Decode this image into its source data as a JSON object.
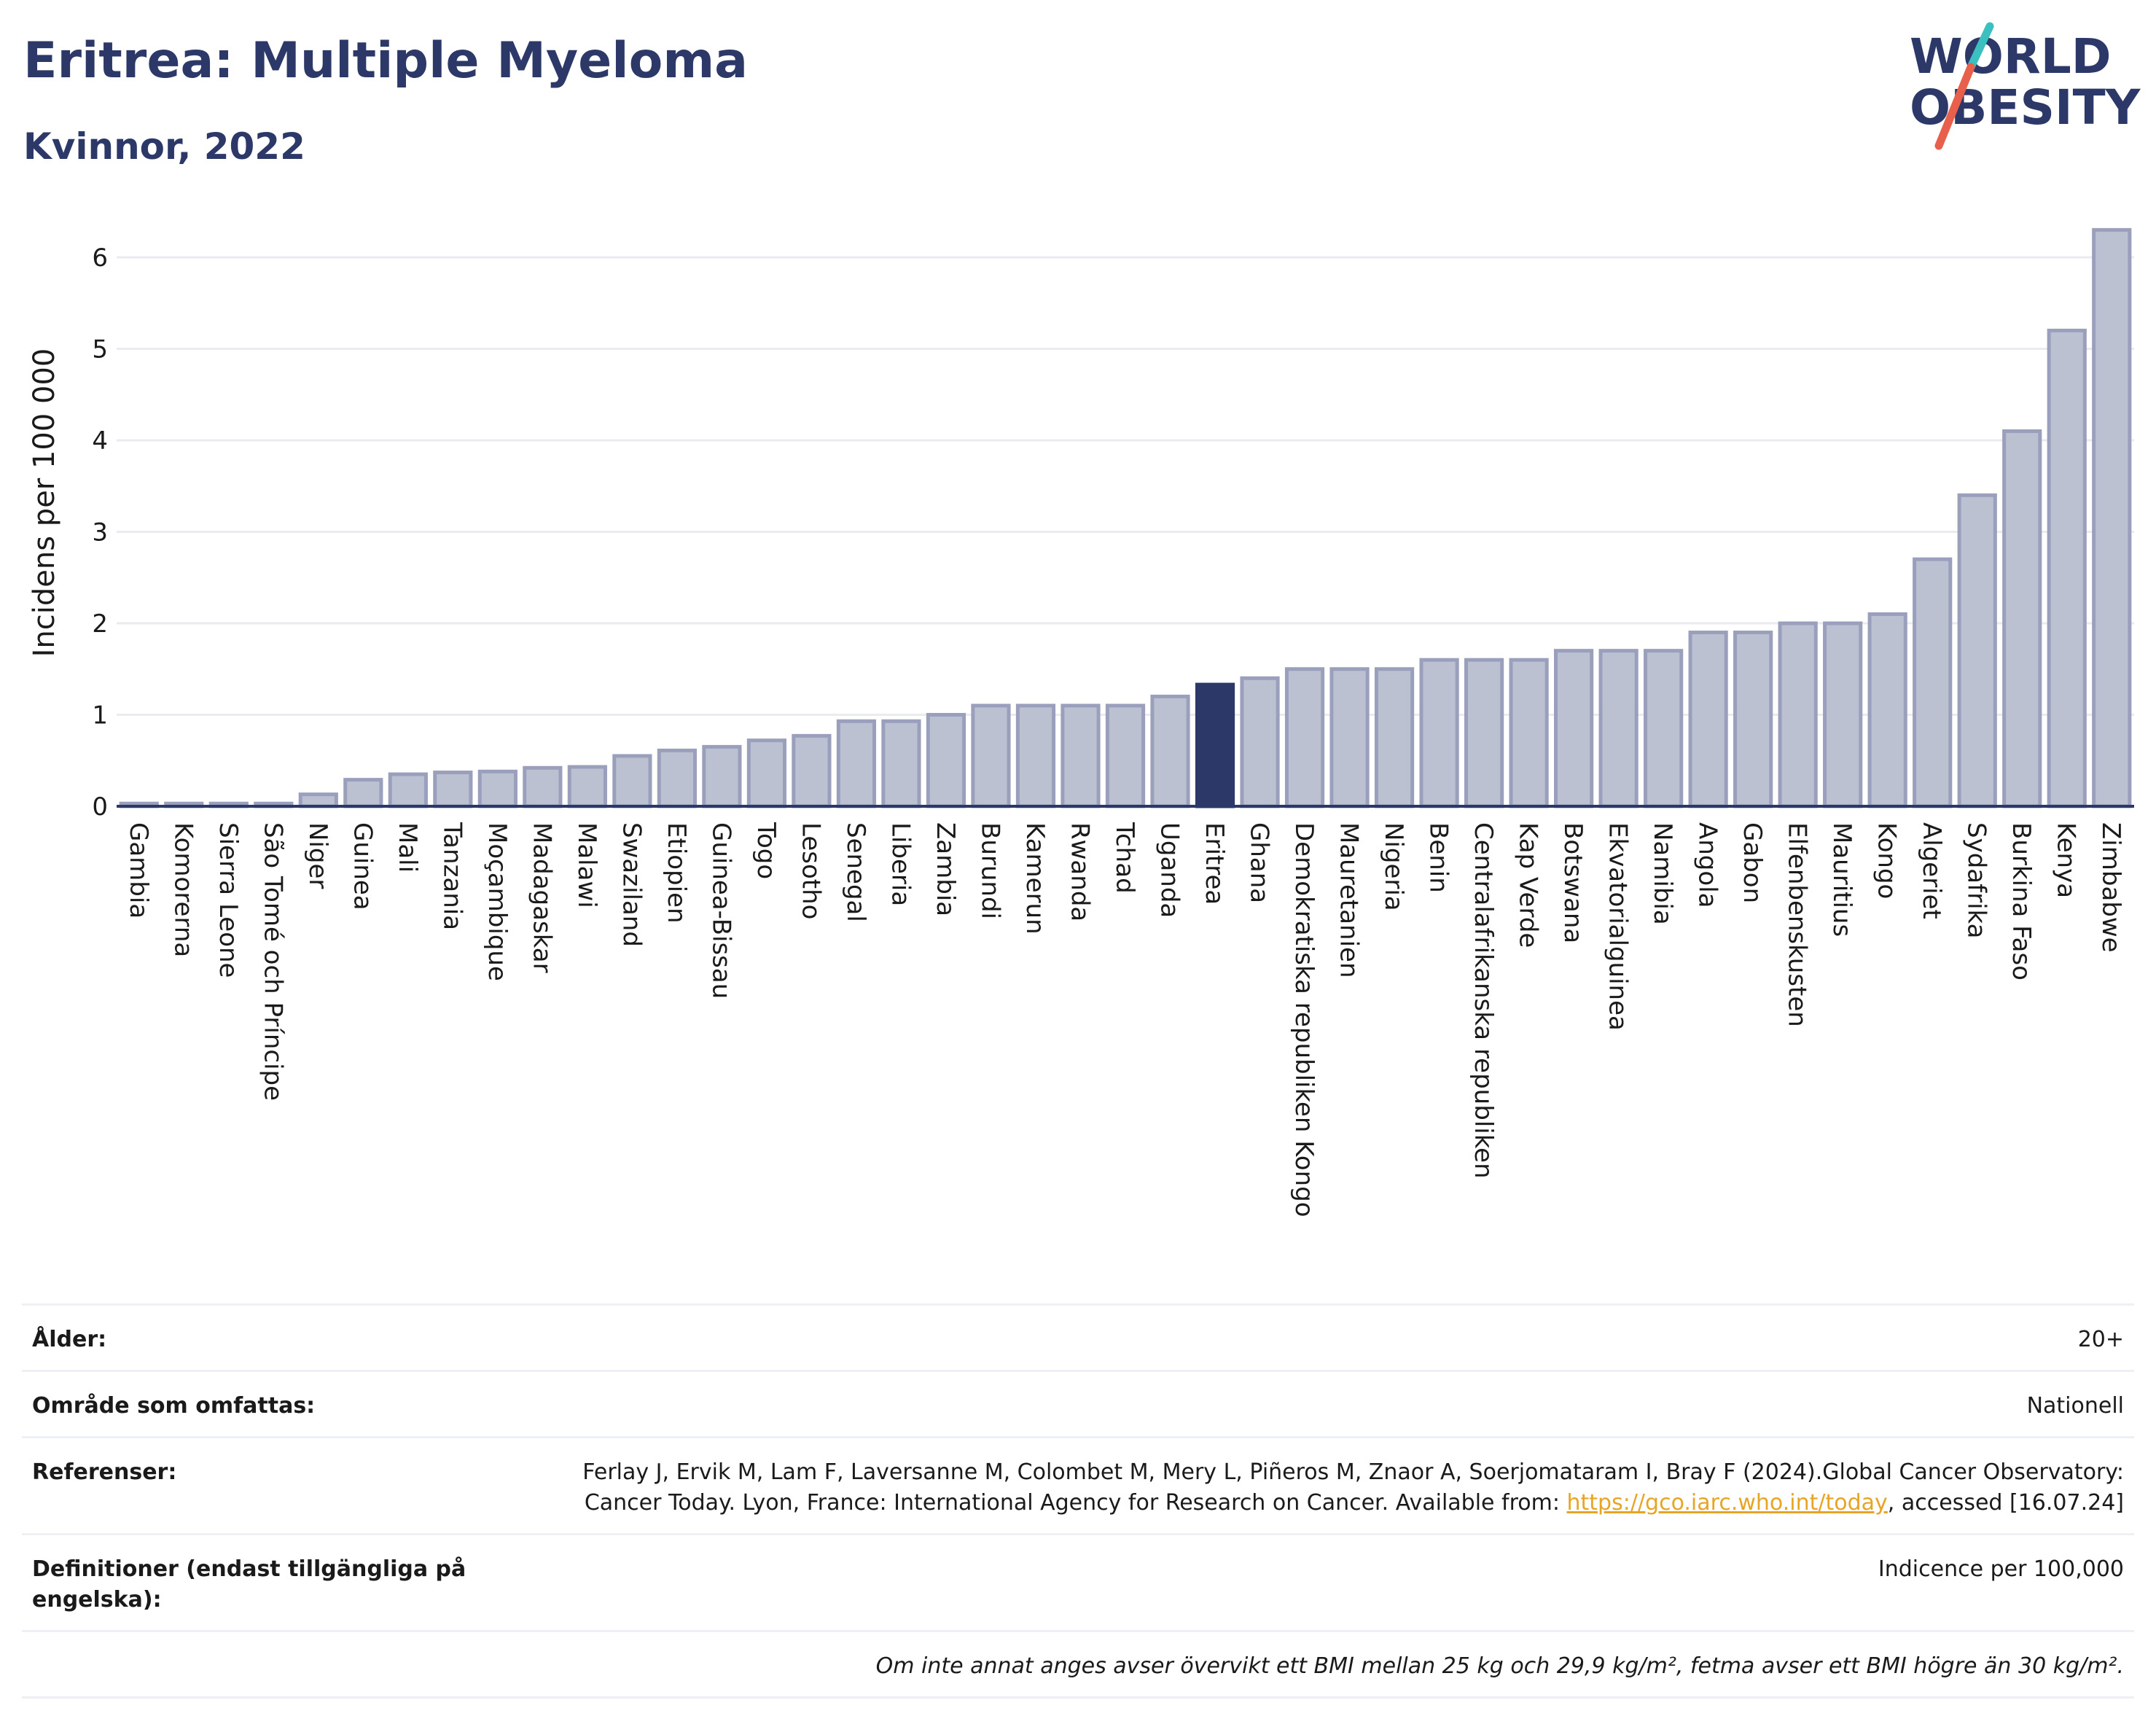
{
  "header": {
    "title": "Eritrea: Multiple Myeloma",
    "subtitle": "Kvinnor, 2022",
    "logo_line1": "WORLD",
    "logo_line2": "OBESITY"
  },
  "colors": {
    "title": "#2c3867",
    "highlight_bar": "#2c3867",
    "bar_fill": "#bcc1d2",
    "bar_stroke": "#9aa0bb",
    "logo_slash_teal": "#3bbfbf",
    "logo_slash_red": "#e8604c",
    "link": "#e8a525"
  },
  "chart_data": {
    "type": "bar",
    "ylabel": "Incidens per 100 000",
    "xlabel": "",
    "ylim": [
      0,
      6.6
    ],
    "yticks": [
      0,
      1,
      2,
      3,
      4,
      5,
      6
    ],
    "highlight": "Eritrea",
    "grid": true,
    "categories": [
      "Gambia",
      "Komorerna",
      "Sierra Leone",
      "São Tomé och Príncipe",
      "Niger",
      "Guinea",
      "Mali",
      "Tanzania",
      "Moçambique",
      "Madagaskar",
      "Malawi",
      "Swaziland",
      "Etiopien",
      "Guinea-Bissau",
      "Togo",
      "Lesotho",
      "Senegal",
      "Liberia",
      "Zambia",
      "Burundi",
      "Kamerun",
      "Rwanda",
      "Tchad",
      "Uganda",
      "Eritrea",
      "Ghana",
      "Demokratiska republiken Kongo",
      "Mauretanien",
      "Nigeria",
      "Benin",
      "Centralafrikanska republiken",
      "Kap Verde",
      "Botswana",
      "Ekvatorialguinea",
      "Namibia",
      "Angola",
      "Gabon",
      "Elfenbenskusten",
      "Mauritius",
      "Kongo",
      "Algeriet",
      "Sydafrika",
      "Burkina Faso",
      "Kenya",
      "Zimbabwe"
    ],
    "values": [
      0.03,
      0.03,
      0.03,
      0.03,
      0.13,
      0.29,
      0.35,
      0.37,
      0.38,
      0.42,
      0.43,
      0.55,
      0.61,
      0.65,
      0.72,
      0.77,
      0.93,
      0.93,
      1.0,
      1.1,
      1.1,
      1.1,
      1.1,
      1.2,
      1.33,
      1.4,
      1.5,
      1.5,
      1.5,
      1.6,
      1.6,
      1.6,
      1.7,
      1.7,
      1.7,
      1.9,
      1.9,
      2.0,
      2.0,
      2.1,
      2.7,
      3.4,
      4.1,
      5.2,
      6.3
    ]
  },
  "info": {
    "rows": [
      {
        "label": "Ålder:",
        "value": "20+"
      },
      {
        "label": "Område som omfattas:",
        "value": "Nationell"
      },
      {
        "label": "Referenser:",
        "value_pre": "Ferlay J, Ervik M, Lam F, Laversanne M, Colombet M, Mery L, Piñeros M, Znaor A, Soerjomataram I, Bray F (2024).Global Cancer Observatory: Cancer Today. Lyon, France: International Agency for Research on Cancer. Available from: ",
        "link": "https://gco.iarc.who.int/today",
        "value_post": ", accessed [16.07.24]"
      },
      {
        "label": "Definitioner (endast tillgängliga på engelska):",
        "value": "Indicence per 100,000"
      }
    ],
    "note": "Om inte annat anges avser övervikt ett BMI mellan 25 kg och 29,9 kg/m², fetma avser ett BMI högre än 30 kg/m²."
  }
}
